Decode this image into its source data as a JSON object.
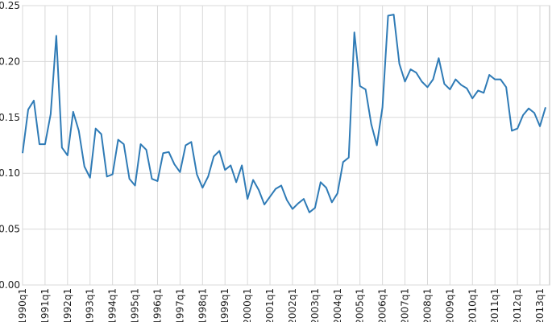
{
  "chart_data": {
    "type": "line",
    "categories": [
      "1990q1",
      null,
      null,
      null,
      "1991q1",
      null,
      null,
      null,
      "1992q1",
      null,
      null,
      null,
      "1993q1",
      null,
      null,
      null,
      "1994q1",
      null,
      null,
      null,
      "1995q1",
      null,
      null,
      null,
      "1996q1",
      null,
      null,
      null,
      "1997q1",
      null,
      null,
      null,
      "1998q1",
      null,
      null,
      null,
      "1999q1",
      null,
      null,
      null,
      "2000q1",
      null,
      null,
      null,
      "2001q1",
      null,
      null,
      null,
      "2002q1",
      null,
      null,
      null,
      "2003q1",
      null,
      null,
      null,
      "2004q1",
      null,
      null,
      null,
      "2005q1",
      null,
      null,
      null,
      "2006q1",
      null,
      null,
      null,
      "2007q1",
      null,
      null,
      null,
      "2008q1",
      null,
      null,
      null,
      "2009q1",
      null,
      null,
      null,
      "2010q1",
      null,
      null,
      null,
      "2011q1",
      null,
      null,
      null,
      "2012q1",
      null,
      null,
      null,
      "2013q1",
      null
    ],
    "values": [
      0.118,
      0.157,
      0.165,
      0.126,
      0.126,
      0.153,
      0.223,
      0.123,
      0.116,
      0.155,
      0.138,
      0.106,
      0.096,
      0.14,
      0.135,
      0.097,
      0.099,
      0.13,
      0.126,
      0.095,
      0.089,
      0.126,
      0.121,
      0.095,
      0.093,
      0.118,
      0.119,
      0.108,
      0.101,
      0.125,
      0.128,
      0.099,
      0.087,
      0.097,
      0.115,
      0.12,
      0.103,
      0.107,
      0.092,
      0.107,
      0.077,
      0.094,
      0.085,
      0.072,
      0.079,
      0.086,
      0.089,
      0.076,
      0.068,
      0.073,
      0.077,
      0.065,
      0.069,
      0.092,
      0.087,
      0.074,
      0.082,
      0.11,
      0.114,
      0.226,
      0.178,
      0.175,
      0.144,
      0.125,
      0.159,
      0.241,
      0.242,
      0.198,
      0.182,
      0.193,
      0.19,
      0.182,
      0.177,
      0.184,
      0.203,
      0.18,
      0.175,
      0.184,
      0.179,
      0.176,
      0.167,
      0.174,
      0.172,
      0.188,
      0.184,
      0.184,
      0.177,
      0.138,
      0.14,
      0.152,
      0.158,
      0.154,
      0.142,
      0.159
    ],
    "color": "#2f7bb6",
    "ylim": [
      0,
      0.25
    ],
    "yticks": [
      {
        "value": 0,
        "label": "0.00"
      },
      {
        "value": 0.05,
        "label": "0.05"
      },
      {
        "value": 0.1,
        "label": "0.10"
      },
      {
        "value": 0.15,
        "label": "0.15"
      },
      {
        "value": 0.2,
        "label": "0.20"
      },
      {
        "value": 0.25,
        "label": "0.25"
      }
    ],
    "grid": true
  }
}
